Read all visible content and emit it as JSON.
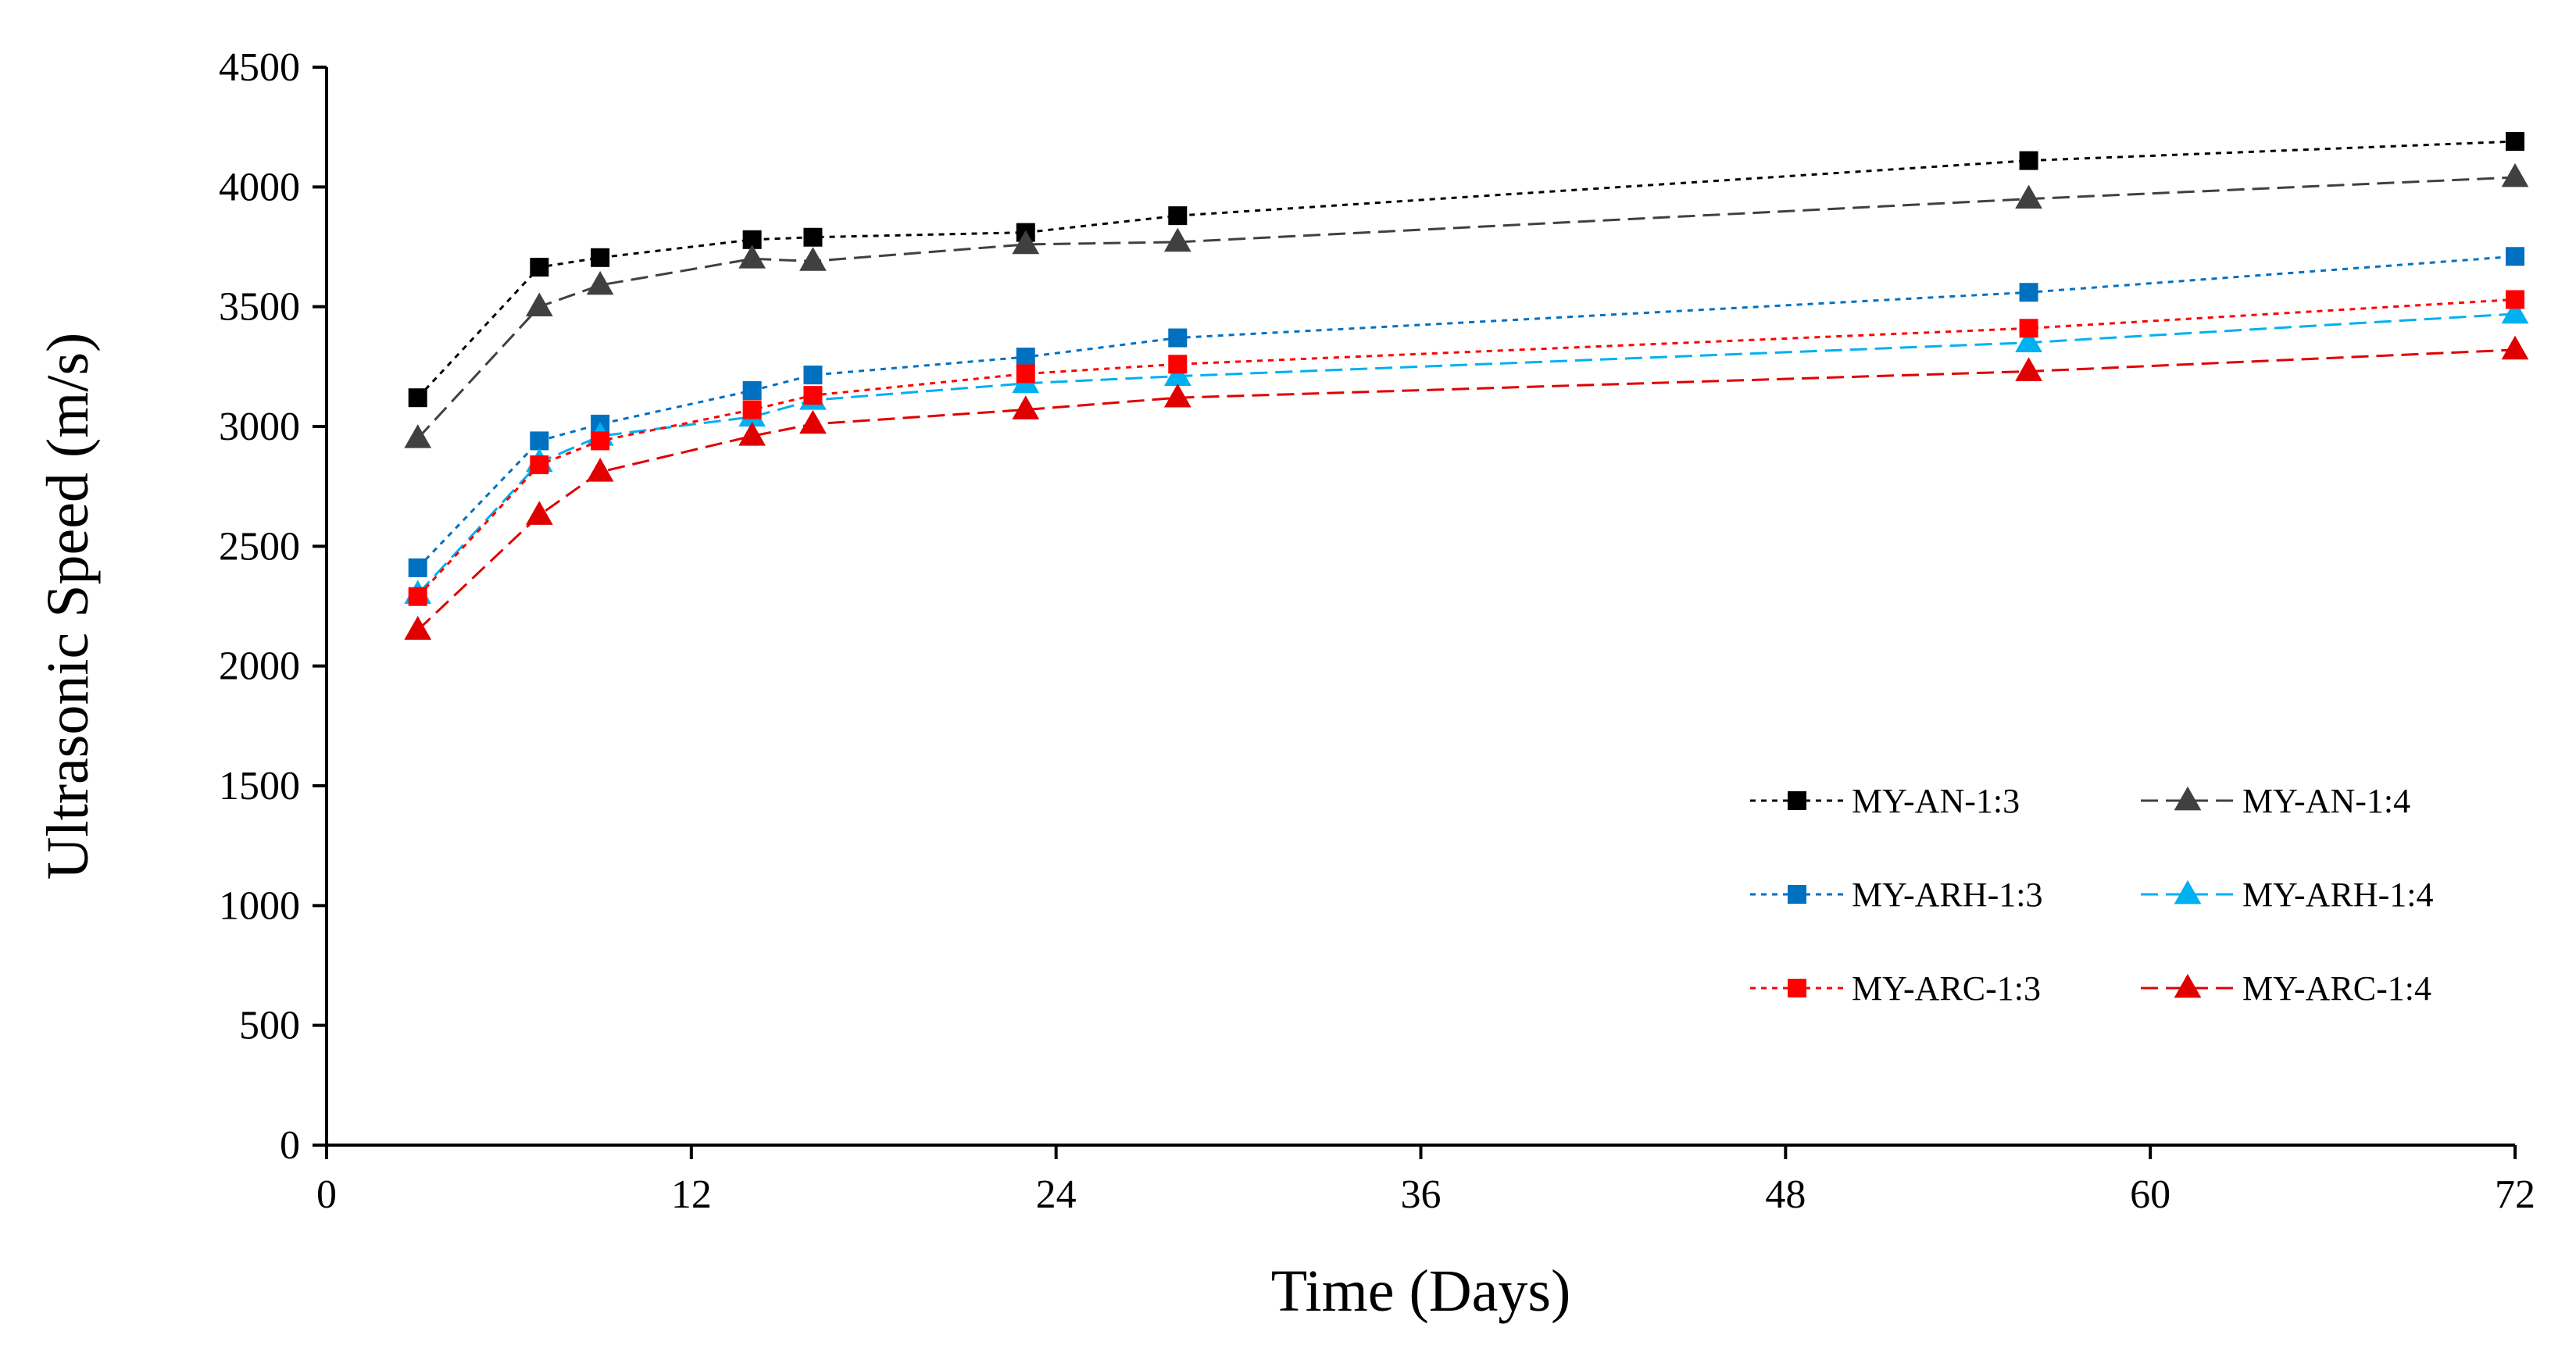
{
  "chart_data": {
    "type": "line",
    "title": "",
    "xlabel": "Time (Days)",
    "ylabel": "Ultrasonic Speed (m/s)",
    "xlim": [
      0,
      72
    ],
    "ylim": [
      0,
      4500
    ],
    "xticks": [
      0,
      12,
      24,
      36,
      48,
      60,
      72
    ],
    "yticks": [
      0,
      500,
      1000,
      1500,
      2000,
      2500,
      3000,
      3500,
      4000,
      4500
    ],
    "xtick_labels": [
      "0",
      "12",
      "24",
      "36",
      "48",
      "60",
      "72"
    ],
    "ytick_labels": [
      "0",
      "500",
      "1000",
      "1500",
      "2000",
      "2500",
      "3000",
      "3500",
      "4000",
      "4500"
    ],
    "grid": false,
    "legend_position": "lower-right",
    "series": [
      {
        "name": "MY-AN-1:3",
        "color": "#000000",
        "marker": "square",
        "line_style": "dotted",
        "x": [
          3,
          7,
          9,
          14,
          16,
          23,
          28,
          56,
          72
        ],
        "values": [
          3120,
          3665,
          3705,
          3780,
          3790,
          3810,
          3880,
          4110,
          4190
        ]
      },
      {
        "name": "MY-AN-1:4",
        "color": "#404040",
        "marker": "triangle",
        "line_style": "dashed",
        "x": [
          3,
          7,
          9,
          14,
          16,
          23,
          28,
          56,
          72
        ],
        "values": [
          2950,
          3500,
          3590,
          3700,
          3690,
          3760,
          3770,
          3950,
          4040
        ]
      },
      {
        "name": "MY-ARH-1:3",
        "color": "#0070C0",
        "marker": "square",
        "line_style": "dotted",
        "x": [
          3,
          7,
          9,
          14,
          16,
          23,
          28,
          56,
          72
        ],
        "values": [
          2410,
          2940,
          3010,
          3150,
          3215,
          3290,
          3370,
          3560,
          3710
        ]
      },
      {
        "name": "MY-ARH-1:4",
        "color": "#00B0F0",
        "marker": "triangle",
        "line_style": "dashed",
        "x": [
          3,
          7,
          9,
          14,
          16,
          23,
          28,
          56,
          72
        ],
        "values": [
          2300,
          2850,
          2960,
          3040,
          3110,
          3180,
          3210,
          3350,
          3470
        ]
      },
      {
        "name": "MY-ARC-1:3",
        "color": "#FF0000",
        "marker": "square",
        "line_style": "dotted",
        "x": [
          3,
          7,
          9,
          14,
          16,
          23,
          28,
          56,
          72
        ],
        "values": [
          2290,
          2840,
          2940,
          3070,
          3130,
          3220,
          3260,
          3410,
          3530
        ]
      },
      {
        "name": "MY-ARC-1:4",
        "color": "#E00000",
        "marker": "triangle",
        "line_style": "dashed",
        "x": [
          3,
          7,
          9,
          14,
          16,
          23,
          28,
          56,
          72
        ],
        "values": [
          2150,
          2630,
          2810,
          2960,
          3010,
          3070,
          3120,
          3230,
          3320
        ]
      }
    ]
  }
}
